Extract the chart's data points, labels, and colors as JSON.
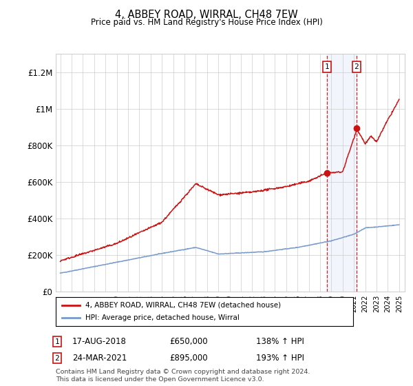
{
  "title": "4, ABBEY ROAD, WIRRAL, CH48 7EW",
  "subtitle": "Price paid vs. HM Land Registry's House Price Index (HPI)",
  "ylim": [
    0,
    1300000
  ],
  "yticks": [
    0,
    200000,
    400000,
    600000,
    800000,
    1000000,
    1200000
  ],
  "ytick_labels": [
    "£0",
    "£200K",
    "£400K",
    "£600K",
    "£800K",
    "£1M",
    "£1.2M"
  ],
  "hpi_color": "#7799cc",
  "price_color": "#cc1111",
  "sale1_date": "17-AUG-2018",
  "sale1_price": 650000,
  "sale1_pct": "138%",
  "sale2_date": "24-MAR-2021",
  "sale2_price": 895000,
  "sale2_pct": "193%",
  "sale1_x": 2018.62,
  "sale2_x": 2021.23,
  "legend_label1": "4, ABBEY ROAD, WIRRAL, CH48 7EW (detached house)",
  "legend_label2": "HPI: Average price, detached house, Wirral",
  "footnote": "Contains HM Land Registry data © Crown copyright and database right 2024.\nThis data is licensed under the Open Government Licence v3.0.",
  "bg_color": "#ffffff",
  "grid_color": "#cccccc",
  "highlight_bg": "#ddeeff"
}
